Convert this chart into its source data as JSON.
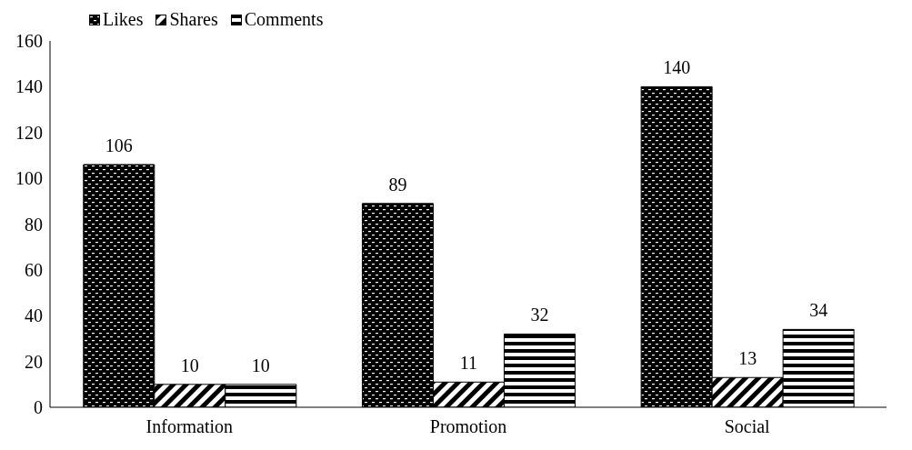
{
  "chart_data": {
    "type": "bar",
    "categories": [
      "Information",
      "Promotion",
      "Social"
    ],
    "series": [
      {
        "name": "Likes",
        "color": "#000000",
        "values": [
          106,
          89,
          140
        ]
      },
      {
        "name": "Shares",
        "color": "#000000",
        "values": [
          10,
          11,
          13
        ]
      },
      {
        "name": "Comments",
        "color": "#000000",
        "values": [
          10,
          32,
          34
        ]
      }
    ],
    "ylim": [
      0,
      160
    ],
    "yticks": [
      0,
      20,
      40,
      60,
      80,
      100,
      120,
      140,
      160
    ],
    "grid": false,
    "legend": "top left",
    "data_labels": true
  }
}
